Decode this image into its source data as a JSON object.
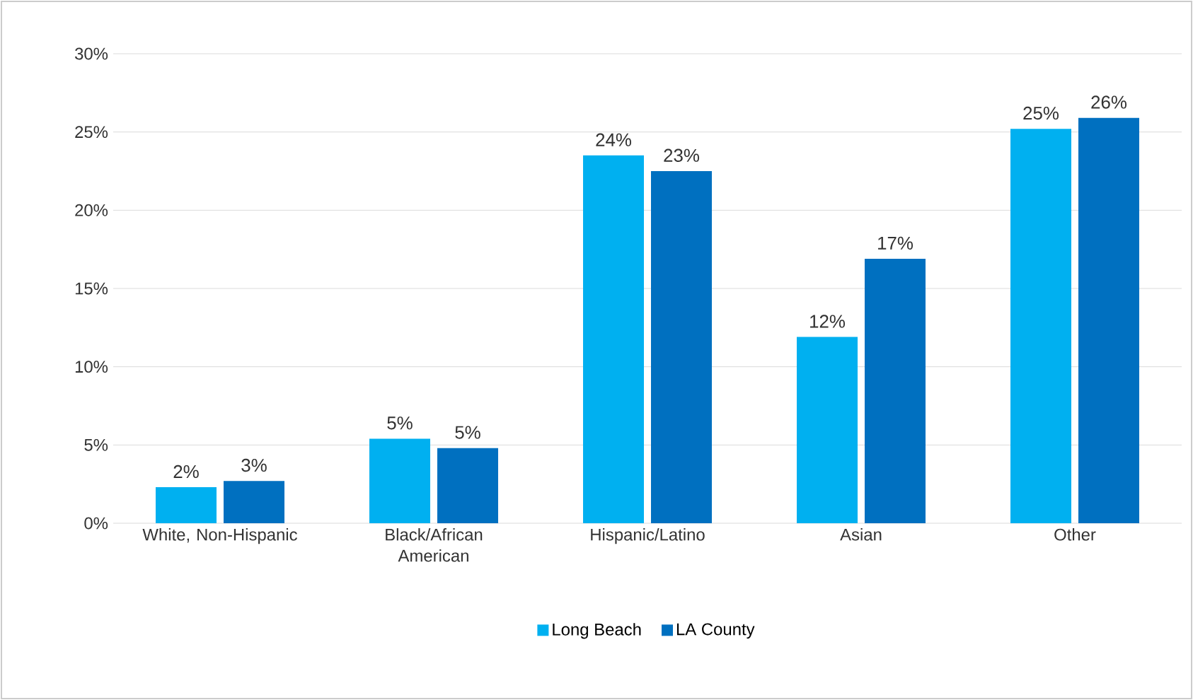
{
  "chart_data": {
    "type": "bar",
    "categories": [
      "White, Non-Hispanic",
      "Black/African American",
      "Hispanic/Latino",
      "Asian",
      "Other"
    ],
    "series": [
      {
        "name": "Long Beach",
        "color": "#00b0f0",
        "values": [
          2.3,
          5.4,
          23.5,
          11.9,
          25.2
        ],
        "value_labels": [
          "2%",
          "5%",
          "24%",
          "12%",
          "25%"
        ]
      },
      {
        "name": "LA County",
        "color": "#0070c0",
        "values": [
          2.7,
          4.8,
          22.5,
          16.9,
          25.9
        ],
        "value_labels": [
          "3%",
          "5%",
          "23%",
          "17%",
          "26%"
        ]
      }
    ],
    "ylim": [
      0,
      30
    ],
    "yticks": [
      {
        "value": 0,
        "label": "0%"
      },
      {
        "value": 5,
        "label": "5%"
      },
      {
        "value": 10,
        "label": "10%"
      },
      {
        "value": 15,
        "label": "15%"
      },
      {
        "value": 20,
        "label": "20%"
      },
      {
        "value": 25,
        "label": "25%"
      },
      {
        "value": 30,
        "label": "30%"
      }
    ],
    "grid": "y",
    "legend": "bottom"
  }
}
